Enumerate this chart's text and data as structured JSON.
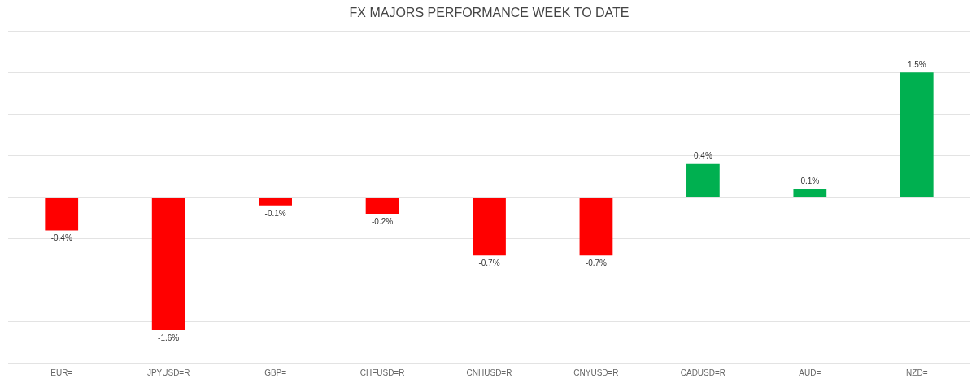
{
  "chart_data": {
    "type": "bar",
    "title": "FX MAJORS PERFORMANCE WEEK TO DATE",
    "categories": [
      "EUR=",
      "JPYUSD=R",
      "GBP=",
      "CHFUSD=R",
      "CNHUSD=R",
      "CNYUSD=R",
      "CADUSD=R",
      "AUD=",
      "NZD="
    ],
    "values": [
      -0.4,
      -1.6,
      -0.1,
      -0.2,
      -0.7,
      -0.7,
      0.4,
      0.1,
      1.5
    ],
    "colors": [
      "#ff0000",
      "#ff0000",
      "#ff0000",
      "#ff0000",
      "#ff0000",
      "#ff0000",
      "#00b050",
      "#00b050",
      "#00b050"
    ],
    "value_labels": [
      "-0.4%",
      "-1.6%",
      "-0.1%",
      "-0.2%",
      "-0.7%",
      "-0.7%",
      "0.4%",
      "0.1%",
      "1.5%"
    ],
    "ylim": [
      -2,
      2
    ],
    "yticks": [
      {
        "value": -2,
        "label": null
      },
      {
        "value": -1.5,
        "label": null
      },
      {
        "value": -1,
        "label": null
      },
      {
        "value": -0.5,
        "label": null
      },
      {
        "value": 0,
        "label": null
      },
      {
        "value": 0.5,
        "label": null
      },
      {
        "value": 1,
        "label": null
      },
      {
        "value": 1.5,
        "label": null
      },
      {
        "value": 2,
        "label": null
      }
    ],
    "grid": "y",
    "tick_labels": "x"
  }
}
